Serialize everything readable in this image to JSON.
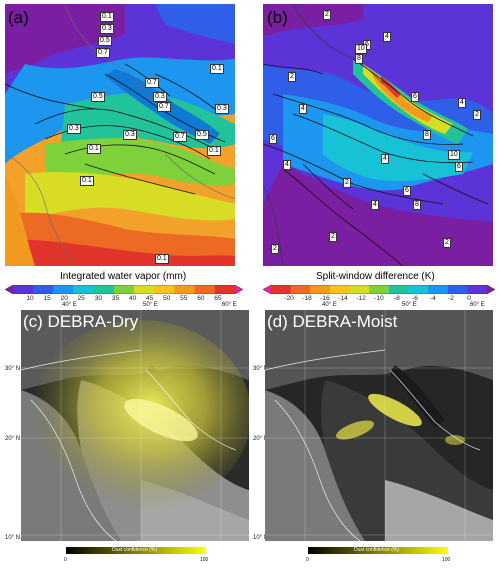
{
  "panels": {
    "a": {
      "tag": "(a)"
    },
    "b": {
      "tag": "(b)"
    },
    "c": {
      "tag": "(c) DEBRA-Dry"
    },
    "d": {
      "tag": "(d) DEBRA-Moist"
    }
  },
  "colorbar_a": {
    "title": "Integrated water vapor (mm)",
    "ticks": [
      "10",
      "15",
      "20",
      "25",
      "30",
      "35",
      "40",
      "45",
      "50",
      "55",
      "60",
      "65"
    ],
    "colors": [
      "#7b1fa2",
      "#5c33d6",
      "#2f5ee8",
      "#1d96f0",
      "#17c2d6",
      "#22c29a",
      "#7ed13b",
      "#d7dc24",
      "#f6c21c",
      "#f29a20",
      "#ec6a24",
      "#e0342c",
      "#e8259a"
    ]
  },
  "colorbar_b": {
    "title": "Split-window difference (K)",
    "ticks": [
      "-20",
      "-18",
      "-16",
      "-14",
      "-12",
      "-10",
      "-8",
      "-6",
      "-4",
      "-2",
      "0"
    ],
    "colors": [
      "#e8259a",
      "#e0342c",
      "#ec6a24",
      "#f29a20",
      "#f6c21c",
      "#d7dc24",
      "#7ed13b",
      "#22c29a",
      "#17c2d6",
      "#1d96f0",
      "#2f5ee8",
      "#5c33d6",
      "#7b1fa2"
    ]
  },
  "lon_labels": [
    "40° E",
    "50° E",
    "60° E"
  ],
  "lat_labels": [
    "30° N",
    "20° N",
    "10° N"
  ],
  "dust_bar": {
    "title": "Dust confidence (%)",
    "min": "0",
    "max": "100"
  },
  "contour_labels_a": [
    "0.1",
    "0.3",
    "0.5",
    "0.7",
    "0.7",
    "0.3",
    "0.7",
    "0.5",
    "0.3",
    "0.1",
    "0.3",
    "0.1",
    "0.1",
    "0.3",
    "0.5",
    "0.7",
    "0.1",
    "0.1"
  ],
  "contour_labels_b": [
    "2",
    "4",
    "6",
    "8",
    "10",
    "6",
    "4",
    "2",
    "2",
    "4",
    "10",
    "6",
    "8",
    "4",
    "2",
    "2",
    "4",
    "6",
    "8",
    "2",
    "2",
    "4",
    "6"
  ]
}
